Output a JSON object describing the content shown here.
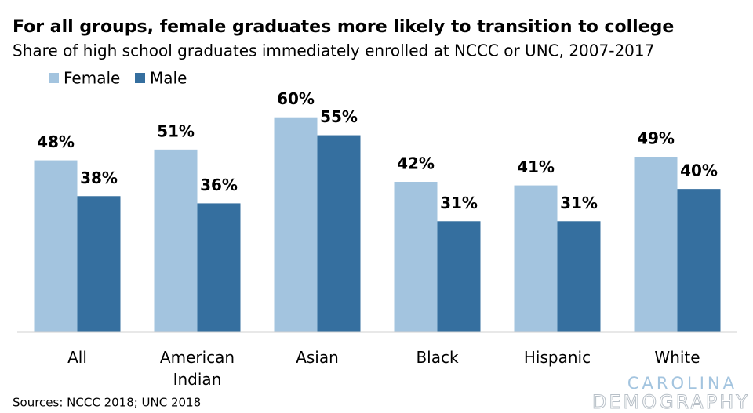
{
  "chart_data": {
    "type": "bar",
    "title": "For all groups, female graduates more likely to transition to college",
    "subtitle": "Share of high school graduates immediately enrolled at NCCC or UNC, 2007-2017",
    "categories": [
      "All",
      "American Indian",
      "Asian",
      "Black",
      "Hispanic",
      "White"
    ],
    "series": [
      {
        "name": "Female",
        "color": "#a3c4df",
        "values": [
          48,
          51,
          60,
          42,
          41,
          49
        ],
        "value_labels": [
          "48%",
          "51%",
          "60%",
          "42%",
          "41%",
          "49%"
        ]
      },
      {
        "name": "Male",
        "color": "#356f9f",
        "values": [
          38,
          36,
          55,
          31,
          31,
          40
        ],
        "value_labels": [
          "38%",
          "36%",
          "55%",
          "31%",
          "31%",
          "40%"
        ]
      }
    ],
    "ylim": [
      0,
      70
    ],
    "legend": "top-left",
    "source": "Sources: NCCC 2018; UNC 2018",
    "logo": [
      "CAROLINA",
      "DEMOGRAPHY"
    ]
  }
}
